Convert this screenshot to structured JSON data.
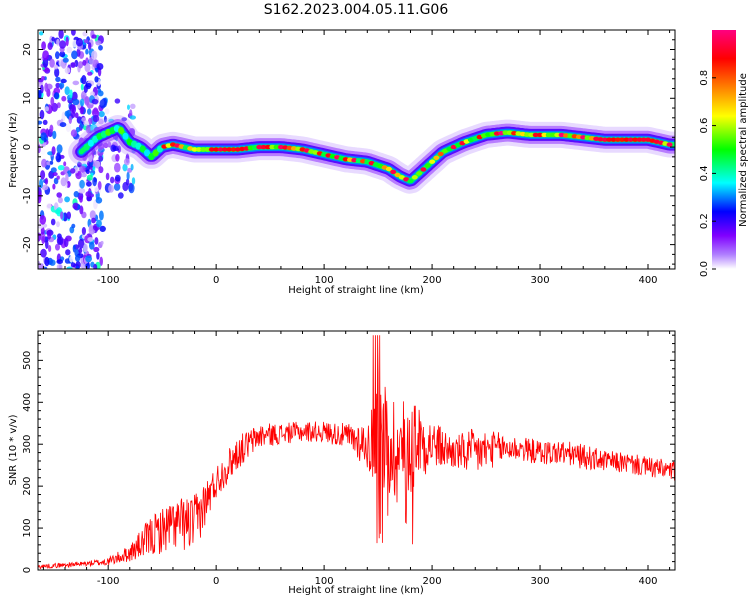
{
  "title": "S162.2023.004.05.11.G06",
  "chart_data": [
    {
      "type": "heatmap",
      "xlabel": "Height of straight line (km)",
      "ylabel": "Frequency (Hz)",
      "xlim": [
        -165,
        425
      ],
      "ylim": [
        -25,
        24
      ],
      "xticks": [
        -100,
        0,
        100,
        200,
        300,
        400
      ],
      "yticks": [
        -20,
        -10,
        0,
        10,
        20
      ],
      "colorbar": {
        "label": "Normalized spectral amplitude",
        "range": [
          0,
          1
        ],
        "ticks": [
          0.0,
          0.2,
          0.4,
          0.6,
          0.8
        ],
        "colors": [
          "#ffffff",
          "#8000ff",
          "#0000ff",
          "#00ffff",
          "#00ff00",
          "#ffff00",
          "#ff8000",
          "#ff0000",
          "#ff0080"
        ]
      },
      "ridge": {
        "x": [
          -130,
          -110,
          -100,
          -90,
          -80,
          -70,
          -60,
          -50,
          -40,
          -20,
          0,
          20,
          40,
          60,
          80,
          100,
          120,
          140,
          160,
          170,
          180,
          190,
          200,
          210,
          230,
          250,
          270,
          290,
          320,
          340,
          360,
          380,
          400,
          420
        ],
        "frequency": [
          -2,
          2,
          3,
          4,
          1,
          0,
          -2,
          0,
          0.5,
          -0.5,
          -0.5,
          -0.5,
          0,
          0,
          -0.5,
          -1.5,
          -2.5,
          -3,
          -4.5,
          -6,
          -7,
          -5,
          -3,
          -1,
          1,
          2.5,
          3,
          2.5,
          2.5,
          2,
          1.5,
          1.5,
          1.5,
          0.5
        ]
      }
    },
    {
      "type": "line",
      "xlabel": "Height of straight line (km)",
      "ylabel": "SNR (10 * v/v)",
      "xlim": [
        -165,
        425
      ],
      "ylim": [
        0,
        570
      ],
      "xticks": [
        -100,
        0,
        100,
        200,
        300,
        400
      ],
      "yticks": [
        0,
        100,
        200,
        300,
        400,
        500
      ],
      "series_color": "#ff0000",
      "envelope": {
        "x": [
          -165,
          -140,
          -120,
          -100,
          -80,
          -60,
          -40,
          -20,
          0,
          20,
          40,
          60,
          80,
          100,
          120,
          140,
          150,
          160,
          170,
          180,
          190,
          200,
          220,
          240,
          260,
          280,
          300,
          320,
          340,
          360,
          380,
          400,
          425
        ],
        "mean": [
          8,
          12,
          15,
          20,
          40,
          80,
          110,
          110,
          210,
          280,
          320,
          325,
          330,
          330,
          320,
          300,
          330,
          300,
          280,
          300,
          310,
          300,
          280,
          280,
          290,
          290,
          280,
          280,
          270,
          260,
          255,
          245,
          235
        ],
        "spread": [
          5,
          6,
          6,
          10,
          20,
          50,
          60,
          70,
          40,
          40,
          30,
          25,
          25,
          25,
          30,
          60,
          140,
          140,
          130,
          120,
          90,
          60,
          40,
          60,
          40,
          30,
          30,
          30,
          30,
          25,
          25,
          25,
          25
        ]
      }
    }
  ]
}
